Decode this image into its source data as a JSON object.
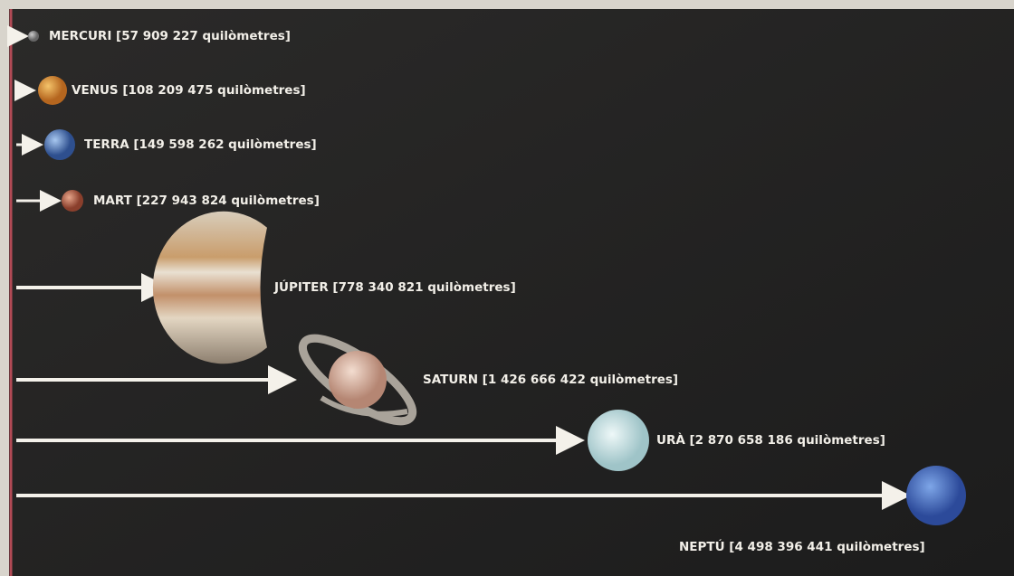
{
  "planets": [
    {
      "label": "MERCURI [57 909 227 quilòmetres]"
    },
    {
      "label": "VENUS [108 209 475 quilòmetres]"
    },
    {
      "label": "TERRA [149 598 262 quilòmetres]"
    },
    {
      "label": "MART [227 943 824 quilòmetres]"
    },
    {
      "label": "JÚPITER [778 340 821 quilòmetres]"
    },
    {
      "label": "SATURN [1 426 666 422 quilòmetres]"
    },
    {
      "label": "URÀ [2 870 658 186 quilòmetres]"
    },
    {
      "label": "NEPTÚ [4 498 396 441 quilòmetres]"
    }
  ]
}
